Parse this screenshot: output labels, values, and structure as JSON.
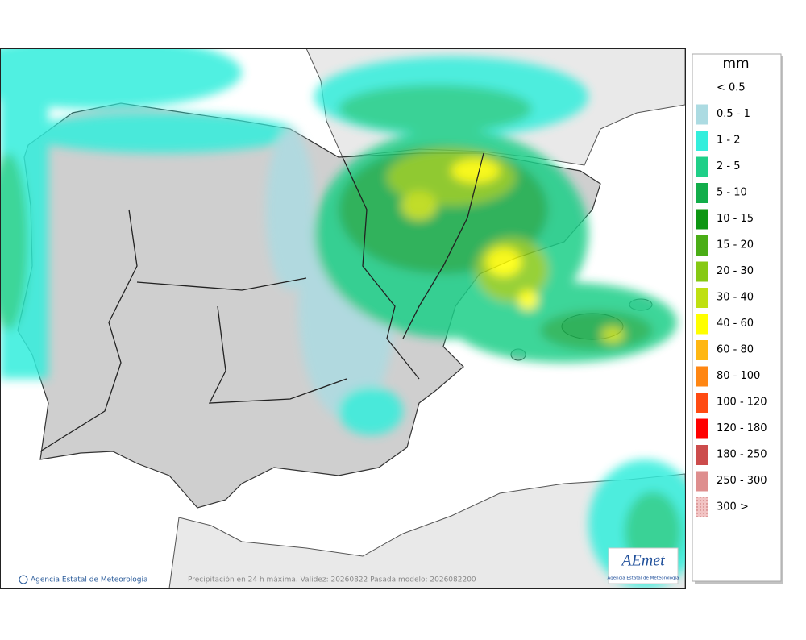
{
  "map": {
    "legend": {
      "title": "mm",
      "items": [
        {
          "label": "< 0.5",
          "color": "#ffffff"
        },
        {
          "label": "0.5 - 1",
          "color": "#acdbe2"
        },
        {
          "label": "1 - 2",
          "color": "#33eedc"
        },
        {
          "label": "2 - 5",
          "color": "#1fcf88"
        },
        {
          "label": "5 - 10",
          "color": "#12ad4a"
        },
        {
          "label": "10 - 15",
          "color": "#0d9612"
        },
        {
          "label": "15 - 20",
          "color": "#4aad16"
        },
        {
          "label": "20 - 30",
          "color": "#86c913"
        },
        {
          "label": "30 - 40",
          "color": "#bfe011"
        },
        {
          "label": "40 - 60",
          "color": "#ffff00"
        },
        {
          "label": "60 - 80",
          "color": "#ffb712"
        },
        {
          "label": "80 - 100",
          "color": "#ff8612"
        },
        {
          "label": "100 - 120",
          "color": "#ff4a12"
        },
        {
          "label": "120 - 180",
          "color": "#ff0000"
        },
        {
          "label": "180 - 250",
          "color": "#cc4c4c"
        },
        {
          "label": "250 - 300",
          "color": "#de8e8e"
        },
        {
          "label": "300 >",
          "color": "#f2c4c4"
        }
      ]
    },
    "credit": "Agencia Estatal de Meteorología",
    "caption": "Precipitación en 24 h máxima. Validez: 20260822 Pasada modelo: 2026082200",
    "logo": {
      "mark": "AEmet",
      "subtitle": "Agencia Estatal de Meteorología"
    }
  }
}
